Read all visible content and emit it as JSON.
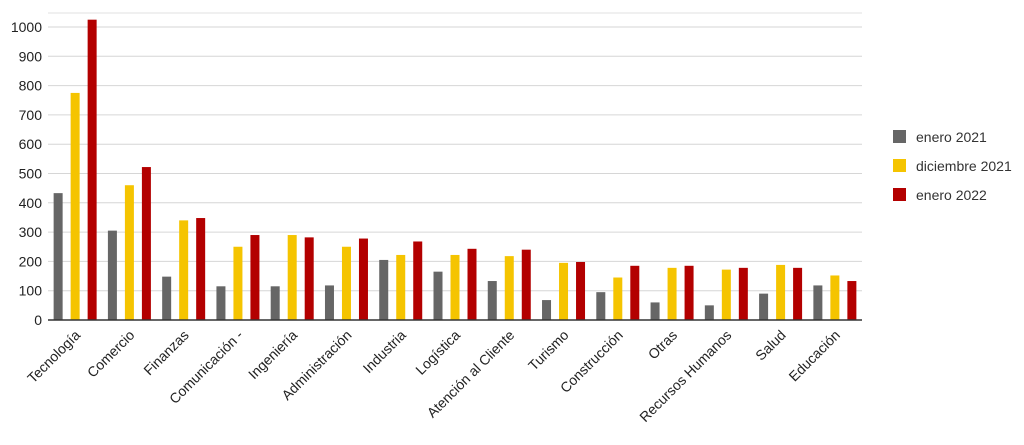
{
  "chart_data": {
    "type": "bar",
    "title": "",
    "xlabel": "",
    "ylabel": "",
    "ylim": [
      0,
      1000
    ],
    "yticks": [
      0,
      100,
      200,
      300,
      400,
      500,
      600,
      700,
      800,
      900,
      1000
    ],
    "grid": true,
    "legend_position": "right",
    "categories": [
      "Tecnología",
      "Comercio",
      "Finanzas",
      "Comunicación -",
      "Ingeniería",
      "Administración",
      "Industria",
      "Logística",
      "Atención al Cliente",
      "Turismo",
      "Construcción",
      "Otras",
      "Recursos Humanos",
      "Salud",
      "Educación"
    ],
    "series": [
      {
        "name": "enero 2021",
        "color": "#666666",
        "values": [
          433,
          305,
          148,
          115,
          115,
          118,
          205,
          165,
          133,
          68,
          95,
          60,
          50,
          90,
          118
        ]
      },
      {
        "name": "diciembre 2021",
        "color": "#f5c400",
        "values": [
          775,
          460,
          340,
          250,
          290,
          250,
          222,
          222,
          218,
          195,
          145,
          178,
          172,
          188,
          152
        ]
      },
      {
        "name": "enero 2022",
        "color": "#b30000",
        "values": [
          1025,
          522,
          348,
          290,
          282,
          278,
          268,
          243,
          240,
          198,
          185,
          185,
          178,
          178,
          133
        ]
      }
    ]
  }
}
